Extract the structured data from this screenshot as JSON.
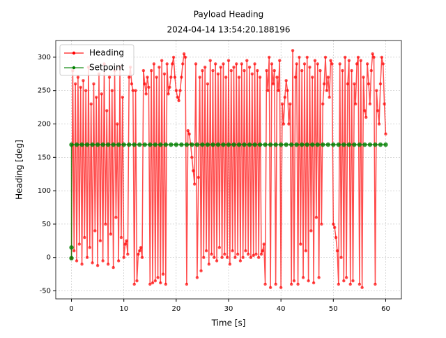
{
  "chart_data": {
    "type": "line",
    "title": "Payload Heading",
    "subtitle": "2024-04-14 13:54:20.188196",
    "xlabel": "Time [s]",
    "ylabel": "Heading [deg]",
    "xlim": [
      -3,
      63
    ],
    "xticks": [
      0,
      10,
      20,
      30,
      40,
      50,
      60
    ],
    "ylim": [
      -62,
      325
    ],
    "yticks": [
      -50,
      0,
      50,
      100,
      150,
      200,
      250,
      300
    ],
    "grid": true,
    "legend": "upper left",
    "series": [
      {
        "name": "Heading",
        "color": "#ff0000",
        "x": [
          0,
          0.25,
          0.5,
          0.75,
          1,
          1.25,
          1.5,
          1.75,
          2,
          2.25,
          2.5,
          2.75,
          3,
          3.25,
          3.5,
          3.75,
          4,
          4.25,
          4.5,
          4.75,
          5,
          5.25,
          5.5,
          5.75,
          6,
          6.25,
          6.5,
          6.75,
          7,
          7.25,
          7.5,
          7.75,
          8,
          8.25,
          8.5,
          8.75,
          9,
          9.25,
          9.5,
          9.75,
          10,
          10.25,
          10.5,
          10.75,
          11,
          11.25,
          11.5,
          11.75,
          12,
          12.25,
          12.5,
          12.75,
          13,
          13.25,
          13.5,
          13.75,
          14,
          14.25,
          14.5,
          14.75,
          15,
          15.25,
          15.5,
          15.75,
          16,
          16.25,
          16.5,
          16.75,
          17,
          17.25,
          17.5,
          17.75,
          18,
          18.25,
          18.5,
          18.75,
          19,
          19.25,
          19.5,
          19.75,
          20,
          20.25,
          20.5,
          20.75,
          21,
          21.25,
          21.5,
          21.75,
          22,
          22.25,
          22.5,
          22.75,
          23,
          23.25,
          23.5,
          23.75,
          24,
          24.25,
          24.5,
          24.75,
          25,
          25.25,
          25.5,
          25.75,
          26,
          26.25,
          26.5,
          26.75,
          27,
          27.25,
          27.5,
          27.75,
          28,
          28.25,
          28.5,
          28.75,
          29,
          29.25,
          29.5,
          29.75,
          30,
          30.25,
          30.5,
          30.75,
          31,
          31.25,
          31.5,
          31.75,
          32,
          32.25,
          32.5,
          32.75,
          33,
          33.25,
          33.5,
          33.75,
          34,
          34.25,
          34.5,
          34.75,
          35,
          35.25,
          35.5,
          35.75,
          36,
          36.25,
          36.5,
          36.75,
          37,
          37.25,
          37.5,
          37.75,
          38,
          38.25,
          38.5,
          38.75,
          39,
          39.25,
          39.5,
          39.75,
          40,
          40.25,
          40.5,
          40.75,
          41,
          41.25,
          41.5,
          41.75,
          42,
          42.25,
          42.5,
          42.75,
          43,
          43.25,
          43.5,
          43.75,
          44,
          44.25,
          44.5,
          44.75,
          45,
          45.25,
          45.5,
          45.75,
          46,
          46.25,
          46.5,
          46.75,
          47,
          47.25,
          47.5,
          47.75,
          48,
          48.25,
          48.5,
          48.75,
          49,
          49.25,
          49.5,
          49.75,
          50,
          50.25,
          50.5,
          50.75,
          51,
          51.25,
          51.5,
          51.75,
          52,
          52.25,
          52.5,
          52.75,
          53,
          53.25,
          53.5,
          53.75,
          54,
          54.25,
          54.5,
          54.75,
          55,
          55.25,
          55.5,
          55.75,
          56,
          56.25,
          56.5,
          56.75,
          57,
          57.25,
          57.5,
          57.75,
          58,
          58.25,
          58.5,
          58.75,
          59,
          59.25,
          59.5,
          59.75,
          60
        ],
        "values": [
          -1,
          280,
          10,
          260,
          -5,
          270,
          20,
          255,
          -10,
          265,
          30,
          250,
          0,
          285,
          15,
          230,
          -8,
          260,
          40,
          240,
          -12,
          275,
          25,
          245,
          -5,
          290,
          50,
          220,
          -10,
          270,
          35,
          250,
          -15,
          280,
          60,
          200,
          -5,
          285,
          30,
          240,
          0,
          20,
          25,
          5,
          270,
          285,
          260,
          250,
          -40,
          250,
          -35,
          5,
          10,
          15,
          0,
          280,
          260,
          245,
          270,
          255,
          -40,
          280,
          -38,
          290,
          -35,
          270,
          -30,
          285,
          -38,
          295,
          -25,
          275,
          -40,
          290,
          245,
          255,
          270,
          290,
          300,
          270,
          250,
          240,
          235,
          250,
          270,
          290,
          305,
          300,
          -40,
          190,
          185,
          170,
          150,
          130,
          110,
          290,
          -30,
          120,
          270,
          -20,
          280,
          0,
          285,
          10,
          260,
          -10,
          295,
          5,
          280,
          0,
          290,
          -5,
          275,
          15,
          285,
          0,
          290,
          5,
          270,
          0,
          295,
          -10,
          280,
          10,
          285,
          0,
          290,
          5,
          270,
          -5,
          290,
          0,
          280,
          10,
          295,
          5,
          285,
          0,
          275,
          3,
          290,
          5,
          280,
          0,
          270,
          5,
          10,
          20,
          -40,
          280,
          250,
          300,
          -45,
          290,
          260,
          280,
          -40,
          270,
          250,
          295,
          -45,
          230,
          200,
          240,
          265,
          250,
          200,
          230,
          -40,
          310,
          -35,
          270,
          290,
          -40,
          300,
          20,
          280,
          -30,
          290,
          10,
          300,
          -35,
          285,
          40,
          270,
          -38,
          295,
          60,
          290,
          -30,
          280,
          50,
          230,
          260,
          300,
          250,
          270,
          240,
          295,
          290,
          50,
          45,
          30,
          10,
          -40,
          290,
          0,
          280,
          -35,
          300,
          -30,
          260,
          295,
          -40,
          280,
          -35,
          260,
          230,
          290,
          300,
          -40,
          295,
          -45,
          270,
          220,
          210,
          290,
          260,
          230,
          280,
          305,
          300,
          -40,
          250,
          220,
          200,
          260,
          300,
          290,
          230,
          185
        ]
      },
      {
        "name": "Setpoint",
        "color": "#008000",
        "x": [
          0,
          0,
          0,
          1,
          2,
          3,
          4,
          5,
          6,
          7,
          8,
          9,
          10,
          11,
          12,
          13,
          14,
          15,
          16,
          17,
          18,
          19,
          20,
          21,
          22,
          23,
          24,
          25,
          26,
          27,
          28,
          29,
          30,
          31,
          32,
          33,
          34,
          35,
          36,
          37,
          38,
          39,
          40,
          41,
          42,
          43,
          44,
          45,
          46,
          47,
          48,
          49,
          50,
          51,
          52,
          53,
          54,
          55,
          56,
          57,
          58,
          59,
          60
        ],
        "values": [
          -1,
          15,
          169,
          169,
          169,
          169,
          169,
          169,
          169,
          169,
          169,
          169,
          169,
          169,
          169,
          169,
          169,
          169,
          169,
          169,
          169,
          169,
          169,
          169,
          169,
          169,
          169,
          169,
          169,
          169,
          169,
          169,
          169,
          169,
          169,
          169,
          169,
          169,
          169,
          169,
          169,
          169,
          169,
          169,
          169,
          169,
          169,
          169,
          169,
          169,
          169,
          169,
          169,
          169,
          169,
          169,
          169,
          169,
          169,
          169,
          169,
          169,
          169
        ]
      }
    ]
  }
}
